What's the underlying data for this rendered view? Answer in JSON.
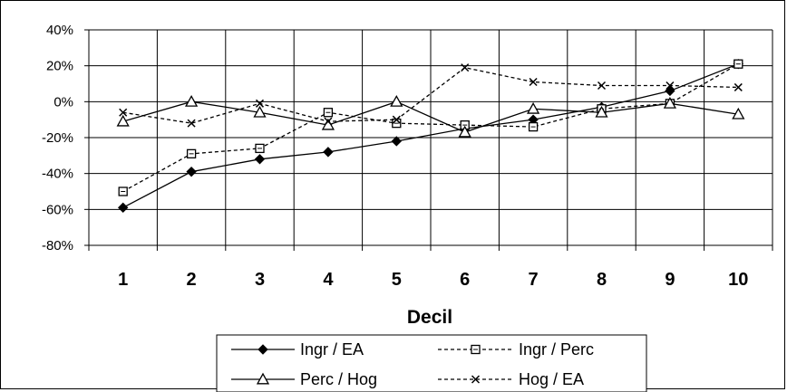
{
  "chart_data": {
    "type": "line",
    "title": "",
    "xlabel": "Decil",
    "ylabel": "",
    "categories": [
      "1",
      "2",
      "3",
      "4",
      "5",
      "6",
      "7",
      "8",
      "9",
      "10"
    ],
    "y_ticks": [
      "40%",
      "20%",
      "0%",
      "-20%",
      "-40%",
      "-60%",
      "-80%"
    ],
    "ylim": [
      -80,
      40
    ],
    "y_unit": "%",
    "grid": true,
    "legend_position": "bottom",
    "series": [
      {
        "name": "Ingr / EA",
        "marker": "diamond",
        "dash": "solid",
        "color": "#000000",
        "values": [
          -59,
          -39,
          -32,
          -28,
          -22,
          -15,
          -10,
          -3,
          6,
          21
        ]
      },
      {
        "name": "Ingr / Perc",
        "marker": "square",
        "dash": "dashed",
        "color": "#000000",
        "values": [
          -50,
          -29,
          -26,
          -6,
          -12,
          -13,
          -14,
          -4,
          -1,
          21
        ]
      },
      {
        "name": "Perc / Hog",
        "marker": "triangle",
        "dash": "solid",
        "color": "#000000",
        "values": [
          -11,
          0,
          -6,
          -13,
          0,
          -17,
          -4,
          -6,
          -1,
          -7
        ]
      },
      {
        "name": "Hog / EA",
        "marker": "x",
        "dash": "dashed",
        "color": "#000000",
        "values": [
          -6,
          -12,
          -1,
          -11,
          -10,
          19,
          11,
          9,
          9,
          8
        ]
      }
    ]
  }
}
